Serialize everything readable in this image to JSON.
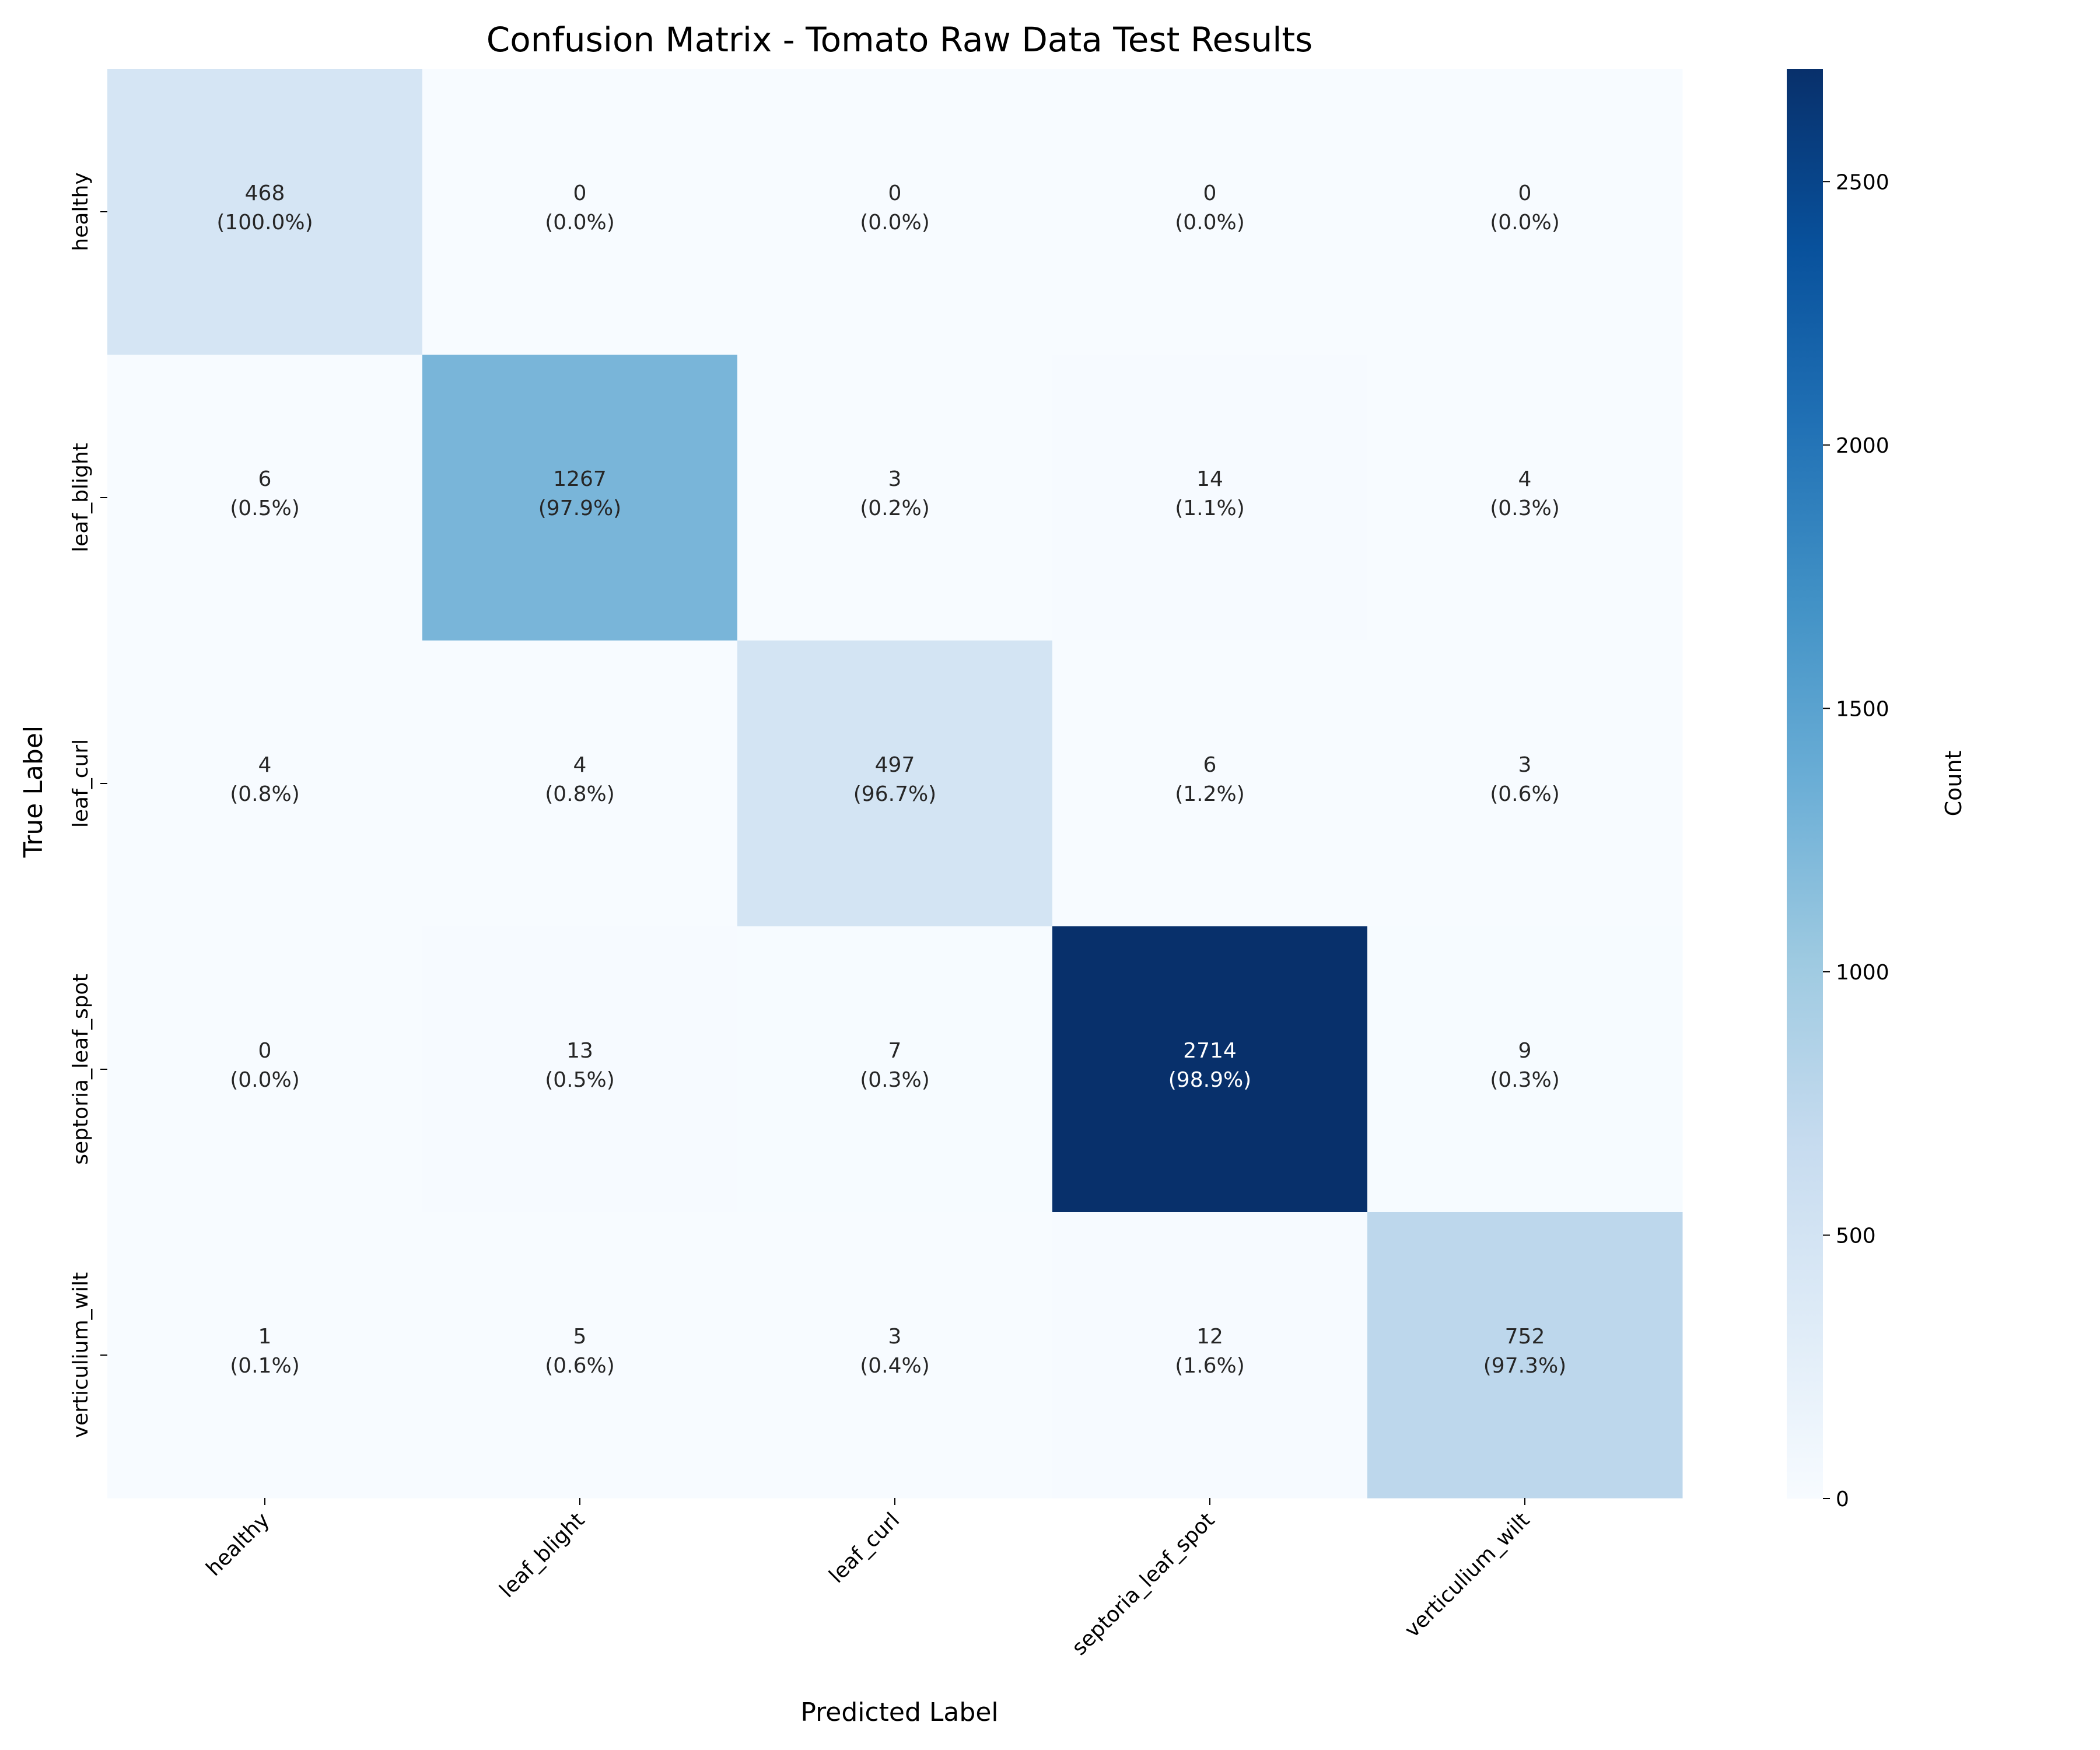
{
  "chart_data": {
    "type": "heatmap",
    "title": "Confusion Matrix - Tomato Raw Data Test Results",
    "xlabel": "Predicted Label",
    "ylabel": "True Label",
    "x_categories": [
      "healthy",
      "leaf_blight",
      "leaf_curl",
      "septoria_leaf_spot",
      "verticulium_wilt"
    ],
    "y_categories": [
      "healthy",
      "leaf_blight",
      "leaf_curl",
      "septoria_leaf_spot",
      "verticulium_wilt"
    ],
    "values": [
      [
        468,
        0,
        0,
        0,
        0
      ],
      [
        6,
        1267,
        3,
        14,
        4
      ],
      [
        4,
        4,
        497,
        6,
        3
      ],
      [
        0,
        13,
        7,
        2714,
        9
      ],
      [
        1,
        5,
        3,
        12,
        752
      ]
    ],
    "percent_labels": [
      [
        "(100.0%)",
        "(0.0%)",
        "(0.0%)",
        "(0.0%)",
        "(0.0%)"
      ],
      [
        "(0.5%)",
        "(97.9%)",
        "(0.2%)",
        "(1.1%)",
        "(0.3%)"
      ],
      [
        "(0.8%)",
        "(0.8%)",
        "(96.7%)",
        "(1.2%)",
        "(0.6%)"
      ],
      [
        "(0.0%)",
        "(0.5%)",
        "(0.3%)",
        "(98.9%)",
        "(0.3%)"
      ],
      [
        "(0.1%)",
        "(0.6%)",
        "(0.4%)",
        "(1.6%)",
        "(97.3%)"
      ]
    ],
    "colorbar": {
      "label": "Count",
      "ticks": [
        0,
        500,
        1000,
        1500,
        2000,
        2500
      ],
      "range": [
        0,
        2714
      ],
      "colormap": "Blues"
    },
    "colormap_stops": [
      "#f7fbff",
      "#deebf7",
      "#c6dbef",
      "#9ecae1",
      "#6baed6",
      "#4292c6",
      "#2171b5",
      "#08519c",
      "#08306b"
    ]
  }
}
